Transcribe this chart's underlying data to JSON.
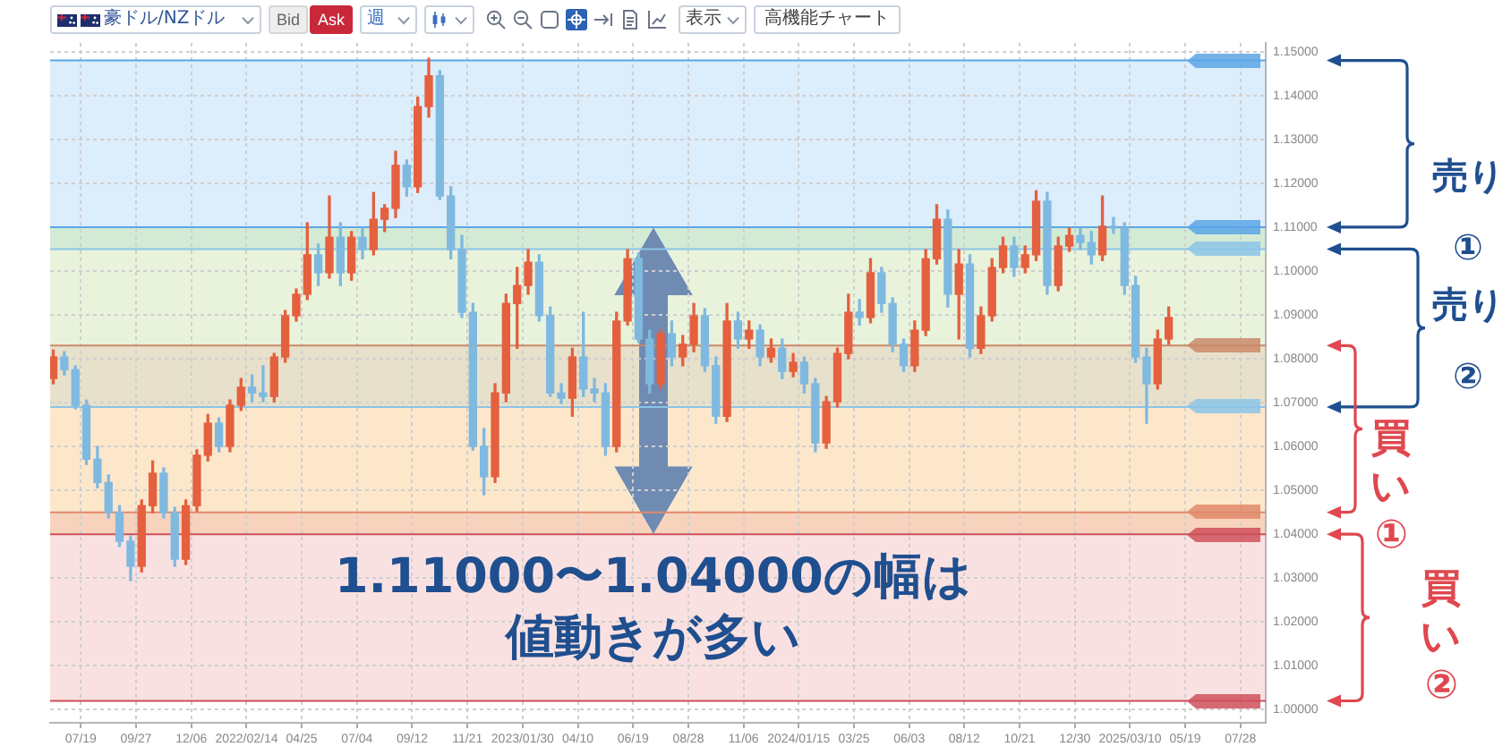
{
  "chart_data": {
    "type": "candlestick",
    "title": "豪ドル/NZドル",
    "x": [
      "2021-06-14",
      "2021-06-28",
      "2021-07-12",
      "2021-07-26",
      "2021-08-09",
      "2021-08-23",
      "2021-09-06",
      "2021-09-20",
      "2021-10-04",
      "2021-10-18",
      "2021-11-01",
      "2021-11-15",
      "2021-11-29",
      "2021-12-13",
      "2021-12-27",
      "2022-01-10",
      "2022-01-24",
      "2022-02-07",
      "2022-02-21",
      "2022-03-07",
      "2022-03-21",
      "2022-04-04",
      "2022-04-18",
      "2022-05-02",
      "2022-05-16",
      "2022-05-30",
      "2022-06-13",
      "2022-06-27",
      "2022-07-11",
      "2022-07-25",
      "2022-08-08",
      "2022-08-22",
      "2022-09-05",
      "2022-09-19",
      "2022-10-03",
      "2022-10-17",
      "2022-10-31",
      "2022-11-14",
      "2022-11-28",
      "2022-12-12",
      "2022-12-26",
      "2023-01-09",
      "2023-01-23",
      "2023-02-06",
      "2023-02-20",
      "2023-03-06",
      "2023-03-20",
      "2023-04-03",
      "2023-04-17",
      "2023-05-01",
      "2023-05-15",
      "2023-05-29",
      "2023-06-12",
      "2023-06-26",
      "2023-07-10",
      "2023-07-24",
      "2023-08-07",
      "2023-08-21",
      "2023-09-04",
      "2023-09-18",
      "2023-10-02",
      "2023-10-16",
      "2023-10-30",
      "2023-11-13",
      "2023-11-27",
      "2023-12-11",
      "2023-12-25",
      "2024-01-08",
      "2024-01-22",
      "2024-02-05",
      "2024-02-19",
      "2024-03-04",
      "2024-03-18",
      "2024-04-01",
      "2024-04-15",
      "2024-04-29",
      "2024-05-13",
      "2024-05-27",
      "2024-06-10",
      "2024-06-24",
      "2024-07-08",
      "2024-07-22",
      "2024-08-05",
      "2024-08-19",
      "2024-09-02",
      "2024-09-16",
      "2024-09-30",
      "2024-10-14",
      "2024-10-28",
      "2024-11-11",
      "2024-11-25",
      "2024-12-09",
      "2024-12-23",
      "2025-01-06",
      "2025-01-20",
      "2025-02-03",
      "2025-02-17",
      "2025-03-03",
      "2025-03-17",
      "2025-03-31",
      "2025-04-14",
      "2025-04-28"
    ],
    "ohlc": [
      [
        1.0755,
        1.082,
        1.0743,
        1.0804
      ],
      [
        1.0804,
        1.0816,
        1.0763,
        1.0775
      ],
      [
        1.0775,
        1.0784,
        1.0686,
        1.0694
      ],
      [
        1.0694,
        1.0706,
        1.0559,
        1.0571
      ],
      [
        1.0571,
        1.06,
        1.0506,
        1.0518
      ],
      [
        1.0518,
        1.0535,
        1.0437,
        1.0449
      ],
      [
        1.0449,
        1.0465,
        1.0372,
        1.0384
      ],
      [
        1.0384,
        1.0396,
        1.0294,
        1.0327
      ],
      [
        1.0327,
        1.0478,
        1.0314,
        1.0465
      ],
      [
        1.0465,
        1.0567,
        1.0449,
        1.0539
      ],
      [
        1.0539,
        1.0551,
        1.0437,
        1.0449
      ],
      [
        1.0449,
        1.0461,
        1.0327,
        1.0343
      ],
      [
        1.0343,
        1.0478,
        1.0331,
        1.0465
      ],
      [
        1.0465,
        1.0592,
        1.0453,
        1.058
      ],
      [
        1.058,
        1.0673,
        1.0567,
        1.0653
      ],
      [
        1.0653,
        1.0665,
        1.0588,
        1.06
      ],
      [
        1.06,
        1.0706,
        1.0588,
        1.0694
      ],
      [
        1.0694,
        1.0755,
        1.0682,
        1.0735
      ],
      [
        1.0735,
        1.0763,
        1.0702,
        1.0722
      ],
      [
        1.0722,
        1.0784,
        1.0702,
        1.0714
      ],
      [
        1.0714,
        1.0812,
        1.0702,
        1.0804
      ],
      [
        1.0804,
        1.091,
        1.0792,
        1.0898
      ],
      [
        1.0898,
        1.0959,
        1.0886,
        1.0947
      ],
      [
        1.0947,
        1.111,
        1.0935,
        1.1037
      ],
      [
        1.1037,
        1.1061,
        1.0967,
        1.0996
      ],
      [
        1.0996,
        1.1171,
        1.0984,
        1.1077
      ],
      [
        1.1077,
        1.111,
        1.0967,
        1.0996
      ],
      [
        1.0996,
        1.109,
        1.0979,
        1.1077
      ],
      [
        1.1077,
        1.1098,
        1.1028,
        1.1049
      ],
      [
        1.1049,
        1.1179,
        1.1037,
        1.1118
      ],
      [
        1.1118,
        1.1151,
        1.109,
        1.1143
      ],
      [
        1.1143,
        1.1273,
        1.1122,
        1.1241
      ],
      [
        1.1241,
        1.1253,
        1.1171,
        1.1192
      ],
      [
        1.1192,
        1.1396,
        1.1179,
        1.1375
      ],
      [
        1.1375,
        1.1485,
        1.1351,
        1.1445
      ],
      [
        1.1445,
        1.1457,
        1.1163,
        1.1171
      ],
      [
        1.1171,
        1.1192,
        1.1028,
        1.1049
      ],
      [
        1.1049,
        1.1081,
        1.0894,
        1.0906
      ],
      [
        1.0906,
        1.0926,
        1.0592,
        1.06
      ],
      [
        1.06,
        1.0641,
        1.049,
        1.0531
      ],
      [
        1.0531,
        1.0743,
        1.0518,
        1.0722
      ],
      [
        1.0722,
        1.0947,
        1.0702,
        1.0926
      ],
      [
        1.0926,
        1.1008,
        1.0824,
        1.0967
      ],
      [
        1.0967,
        1.1049,
        1.0947,
        1.102
      ],
      [
        1.102,
        1.1037,
        1.0886,
        1.0898
      ],
      [
        1.0898,
        1.0918,
        1.0714,
        1.0722
      ],
      [
        1.0722,
        1.0743,
        1.0698,
        1.071
      ],
      [
        1.071,
        1.0824,
        1.0669,
        1.0804
      ],
      [
        1.0804,
        1.0906,
        1.0714,
        1.0731
      ],
      [
        1.0731,
        1.0755,
        1.0702,
        1.0722
      ],
      [
        1.0722,
        1.0743,
        1.058,
        1.06
      ],
      [
        1.06,
        1.0906,
        1.0588,
        1.0886
      ],
      [
        1.0886,
        1.1049,
        1.0877,
        1.1028
      ],
      [
        1.1028,
        1.1041,
        1.0837,
        1.0845
      ],
      [
        1.0845,
        1.0865,
        1.0722,
        1.0743
      ],
      [
        1.0743,
        1.0865,
        1.0731,
        1.0857
      ],
      [
        1.0857,
        1.0886,
        1.0784,
        1.0804
      ],
      [
        1.0804,
        1.0853,
        1.0784,
        1.0833
      ],
      [
        1.0833,
        1.0926,
        1.0816,
        1.0898
      ],
      [
        1.0898,
        1.0914,
        1.0771,
        1.0784
      ],
      [
        1.0784,
        1.0804,
        1.0653,
        1.0669
      ],
      [
        1.0669,
        1.0926,
        1.0657,
        1.0886
      ],
      [
        1.0886,
        1.0906,
        1.0824,
        1.0845
      ],
      [
        1.0845,
        1.0886,
        1.0824,
        1.0865
      ],
      [
        1.0865,
        1.0877,
        1.0784,
        1.0804
      ],
      [
        1.0804,
        1.0845,
        1.0792,
        1.0824
      ],
      [
        1.0824,
        1.0845,
        1.0755,
        1.0771
      ],
      [
        1.0771,
        1.0812,
        1.0759,
        1.0792
      ],
      [
        1.0792,
        1.0804,
        1.0722,
        1.0743
      ],
      [
        1.0743,
        1.0755,
        1.0588,
        1.0608
      ],
      [
        1.0608,
        1.0714,
        1.0596,
        1.0702
      ],
      [
        1.0702,
        1.0824,
        1.069,
        1.0812
      ],
      [
        1.0812,
        1.0947,
        1.08,
        1.0906
      ],
      [
        1.0906,
        1.0935,
        1.0877,
        1.0894
      ],
      [
        1.0894,
        1.1028,
        1.0882,
        1.0996
      ],
      [
        1.0996,
        1.1008,
        1.0906,
        1.0926
      ],
      [
        1.0926,
        1.0939,
        1.0816,
        1.0833
      ],
      [
        1.0833,
        1.0845,
        1.0771,
        1.0784
      ],
      [
        1.0784,
        1.0886,
        1.0771,
        1.0865
      ],
      [
        1.0865,
        1.1049,
        1.0853,
        1.1028
      ],
      [
        1.1028,
        1.1151,
        1.1016,
        1.1118
      ],
      [
        1.1118,
        1.1139,
        1.0918,
        1.0947
      ],
      [
        1.0947,
        1.1049,
        1.0845,
        1.1016
      ],
      [
        1.1016,
        1.1037,
        1.0804,
        1.0824
      ],
      [
        1.0824,
        1.0918,
        1.0812,
        1.0898
      ],
      [
        1.0898,
        1.1028,
        1.0886,
        1.1008
      ],
      [
        1.1008,
        1.1077,
        1.0996,
        1.1057
      ],
      [
        1.1057,
        1.1077,
        1.0988,
        1.1008
      ],
      [
        1.1008,
        1.1057,
        1.0996,
        1.1037
      ],
      [
        1.1037,
        1.1183,
        1.1024,
        1.1159
      ],
      [
        1.1159,
        1.1179,
        1.0947,
        1.0967
      ],
      [
        1.0967,
        1.1077,
        1.0955,
        1.1057
      ],
      [
        1.1057,
        1.1098,
        1.1045,
        1.1081
      ],
      [
        1.1081,
        1.1098,
        1.1049,
        1.1065
      ],
      [
        1.1065,
        1.109,
        1.1016,
        1.1037
      ],
      [
        1.1037,
        1.1171,
        1.1024,
        1.1102
      ],
      [
        1.1102,
        1.1122,
        1.1086,
        1.1098
      ],
      [
        1.1098,
        1.111,
        1.0947,
        1.0967
      ],
      [
        1.0967,
        1.0988,
        1.0792,
        1.0804
      ],
      [
        1.0804,
        1.0824,
        1.0653,
        1.0743
      ],
      [
        1.0743,
        1.0865,
        1.0731,
        1.0845
      ],
      [
        1.0845,
        1.0918,
        1.0833,
        1.0894
      ]
    ],
    "colors": [
      "#e4603e",
      "#7fb9e0",
      "#7fb9e0",
      "#7fb9e0",
      "#7fb9e0",
      "#7fb9e0",
      "#7fb9e0",
      "#7fb9e0",
      "#e4603e",
      "#e4603e",
      "#7fb9e0",
      "#7fb9e0",
      "#e4603e",
      "#e4603e",
      "#e4603e",
      "#7fb9e0",
      "#e4603e",
      "#e4603e",
      "#7fb9e0",
      "#7fb9e0",
      "#e4603e",
      "#e4603e",
      "#e4603e",
      "#e4603e",
      "#7fb9e0",
      "#e4603e",
      "#7fb9e0",
      "#e4603e",
      "#7fb9e0",
      "#e4603e",
      "#e4603e",
      "#e4603e",
      "#7fb9e0",
      "#e4603e",
      "#e4603e",
      "#7fb9e0",
      "#7fb9e0",
      "#7fb9e0",
      "#7fb9e0",
      "#7fb9e0",
      "#e4603e",
      "#e4603e",
      "#e4603e",
      "#e4603e",
      "#7fb9e0",
      "#7fb9e0",
      "#7fb9e0",
      "#e4603e",
      "#7fb9e0",
      "#7fb9e0",
      "#7fb9e0",
      "#e4603e",
      "#e4603e",
      "#7fb9e0",
      "#7fb9e0",
      "#e4603e",
      "#7fb9e0",
      "#e4603e",
      "#e4603e",
      "#7fb9e0",
      "#7fb9e0",
      "#e4603e",
      "#7fb9e0",
      "#e4603e",
      "#7fb9e0",
      "#e4603e",
      "#7fb9e0",
      "#e4603e",
      "#7fb9e0",
      "#7fb9e0",
      "#e4603e",
      "#e4603e",
      "#e4603e",
      "#7fb9e0",
      "#e4603e",
      "#7fb9e0",
      "#7fb9e0",
      "#7fb9e0",
      "#e4603e",
      "#e4603e",
      "#e4603e",
      "#7fb9e0",
      "#e4603e",
      "#7fb9e0",
      "#e4603e",
      "#e4603e",
      "#e4603e",
      "#7fb9e0",
      "#e4603e",
      "#e4603e",
      "#7fb9e0",
      "#e4603e",
      "#e4603e",
      "#7fb9e0",
      "#7fb9e0",
      "#e4603e",
      "#7fb9e0",
      "#7fb9e0",
      "#7fb9e0",
      "#7fb9e0",
      "#e4603e",
      "#e4603e"
    ],
    "xlim": [
      "2021-06-10",
      "2025-08-29"
    ],
    "xticks": [
      {
        "value": "2021-07-19",
        "label": "07/19"
      },
      {
        "value": "2021-09-27",
        "label": "09/27"
      },
      {
        "value": "2021-12-06",
        "label": "12/06"
      },
      {
        "value": "2022-02-14",
        "label": "2022/02/14"
      },
      {
        "value": "2022-04-25",
        "label": "04/25"
      },
      {
        "value": "2022-07-04",
        "label": "07/04"
      },
      {
        "value": "2022-09-12",
        "label": "09/12"
      },
      {
        "value": "2022-11-21",
        "label": "11/21"
      },
      {
        "value": "2023-01-30",
        "label": "2023/01/30"
      },
      {
        "value": "2023-04-10",
        "label": "04/10"
      },
      {
        "value": "2023-06-19",
        "label": "06/19"
      },
      {
        "value": "2023-08-28",
        "label": "08/28"
      },
      {
        "value": "2023-11-06",
        "label": "11/06"
      },
      {
        "value": "2024-01-15",
        "label": "2024/01/15"
      },
      {
        "value": "2024-03-25",
        "label": "03/25"
      },
      {
        "value": "2024-06-03",
        "label": "06/03"
      },
      {
        "value": "2024-08-12",
        "label": "08/12"
      },
      {
        "value": "2024-10-21",
        "label": "10/21"
      },
      {
        "value": "2024-12-30",
        "label": "12/30"
      },
      {
        "value": "2025-03-10",
        "label": "2025/03/10"
      },
      {
        "value": "2025-05-19",
        "label": "05/19"
      },
      {
        "value": "2025-07-28",
        "label": "07/28"
      }
    ],
    "ylim": [
      0.997,
      1.152
    ],
    "yticks": [
      {
        "value": 1.0,
        "label": "1.00000"
      },
      {
        "value": 1.01,
        "label": "1.01000"
      },
      {
        "value": 1.02,
        "label": "1.02000"
      },
      {
        "value": 1.03,
        "label": "1.03000"
      },
      {
        "value": 1.04,
        "label": "1.04000"
      },
      {
        "value": 1.05,
        "label": "1.05000"
      },
      {
        "value": 1.06,
        "label": "1.06000"
      },
      {
        "value": 1.07,
        "label": "1.07000"
      },
      {
        "value": 1.08,
        "label": "1.08000"
      },
      {
        "value": 1.09,
        "label": "1.09000"
      },
      {
        "value": 1.1,
        "label": "1.10000"
      },
      {
        "value": 1.11,
        "label": "1.11000"
      },
      {
        "value": 1.12,
        "label": "1.12000"
      },
      {
        "value": 1.13,
        "label": "1.13000"
      },
      {
        "value": 1.14,
        "label": "1.14000"
      },
      {
        "value": 1.15,
        "label": "1.15000"
      }
    ],
    "grid": true,
    "bands": [
      {
        "axis": "y",
        "from": 1.11,
        "to": 1.148,
        "color": "#dcedfb"
      },
      {
        "axis": "y",
        "from": 1.105,
        "to": 1.11,
        "color": "#d3ead5"
      },
      {
        "axis": "y",
        "from": 1.083,
        "to": 1.105,
        "color": "#e9f3dc"
      },
      {
        "axis": "y",
        "from": 1.069,
        "to": 1.083,
        "color": "#e7e1cb"
      },
      {
        "axis": "y",
        "from": 1.045,
        "to": 1.069,
        "color": "#fce7cb"
      },
      {
        "axis": "y",
        "from": 1.04,
        "to": 1.045,
        "color": "#f7d2bc"
      },
      {
        "axis": "y",
        "from": 1.002,
        "to": 1.04,
        "color": "#fae1e1"
      }
    ],
    "ref_lines": [
      {
        "axis": "y",
        "value": 1.148,
        "color": "#5aa6e6"
      },
      {
        "axis": "y",
        "value": 1.11,
        "color": "#5aa6e6"
      },
      {
        "axis": "y",
        "value": 1.105,
        "color": "#8cc4e8"
      },
      {
        "axis": "y",
        "value": 1.083,
        "color": "#c98a6a"
      },
      {
        "axis": "y",
        "value": 1.069,
        "color": "#8cc4e8"
      },
      {
        "axis": "y",
        "value": 1.045,
        "color": "#e08a6a"
      },
      {
        "axis": "y",
        "value": 1.04,
        "color": "#cf505a"
      },
      {
        "axis": "y",
        "value": 1.002,
        "color": "#cf505a"
      }
    ],
    "annotations": [
      "Bid",
      "Ask",
      "週",
      "表示",
      "高機能チャート",
      "1.11000〜1.04000の幅は値動きが多い",
      "売り①",
      "売り②",
      "買い①",
      "買い②"
    ]
  }
}
